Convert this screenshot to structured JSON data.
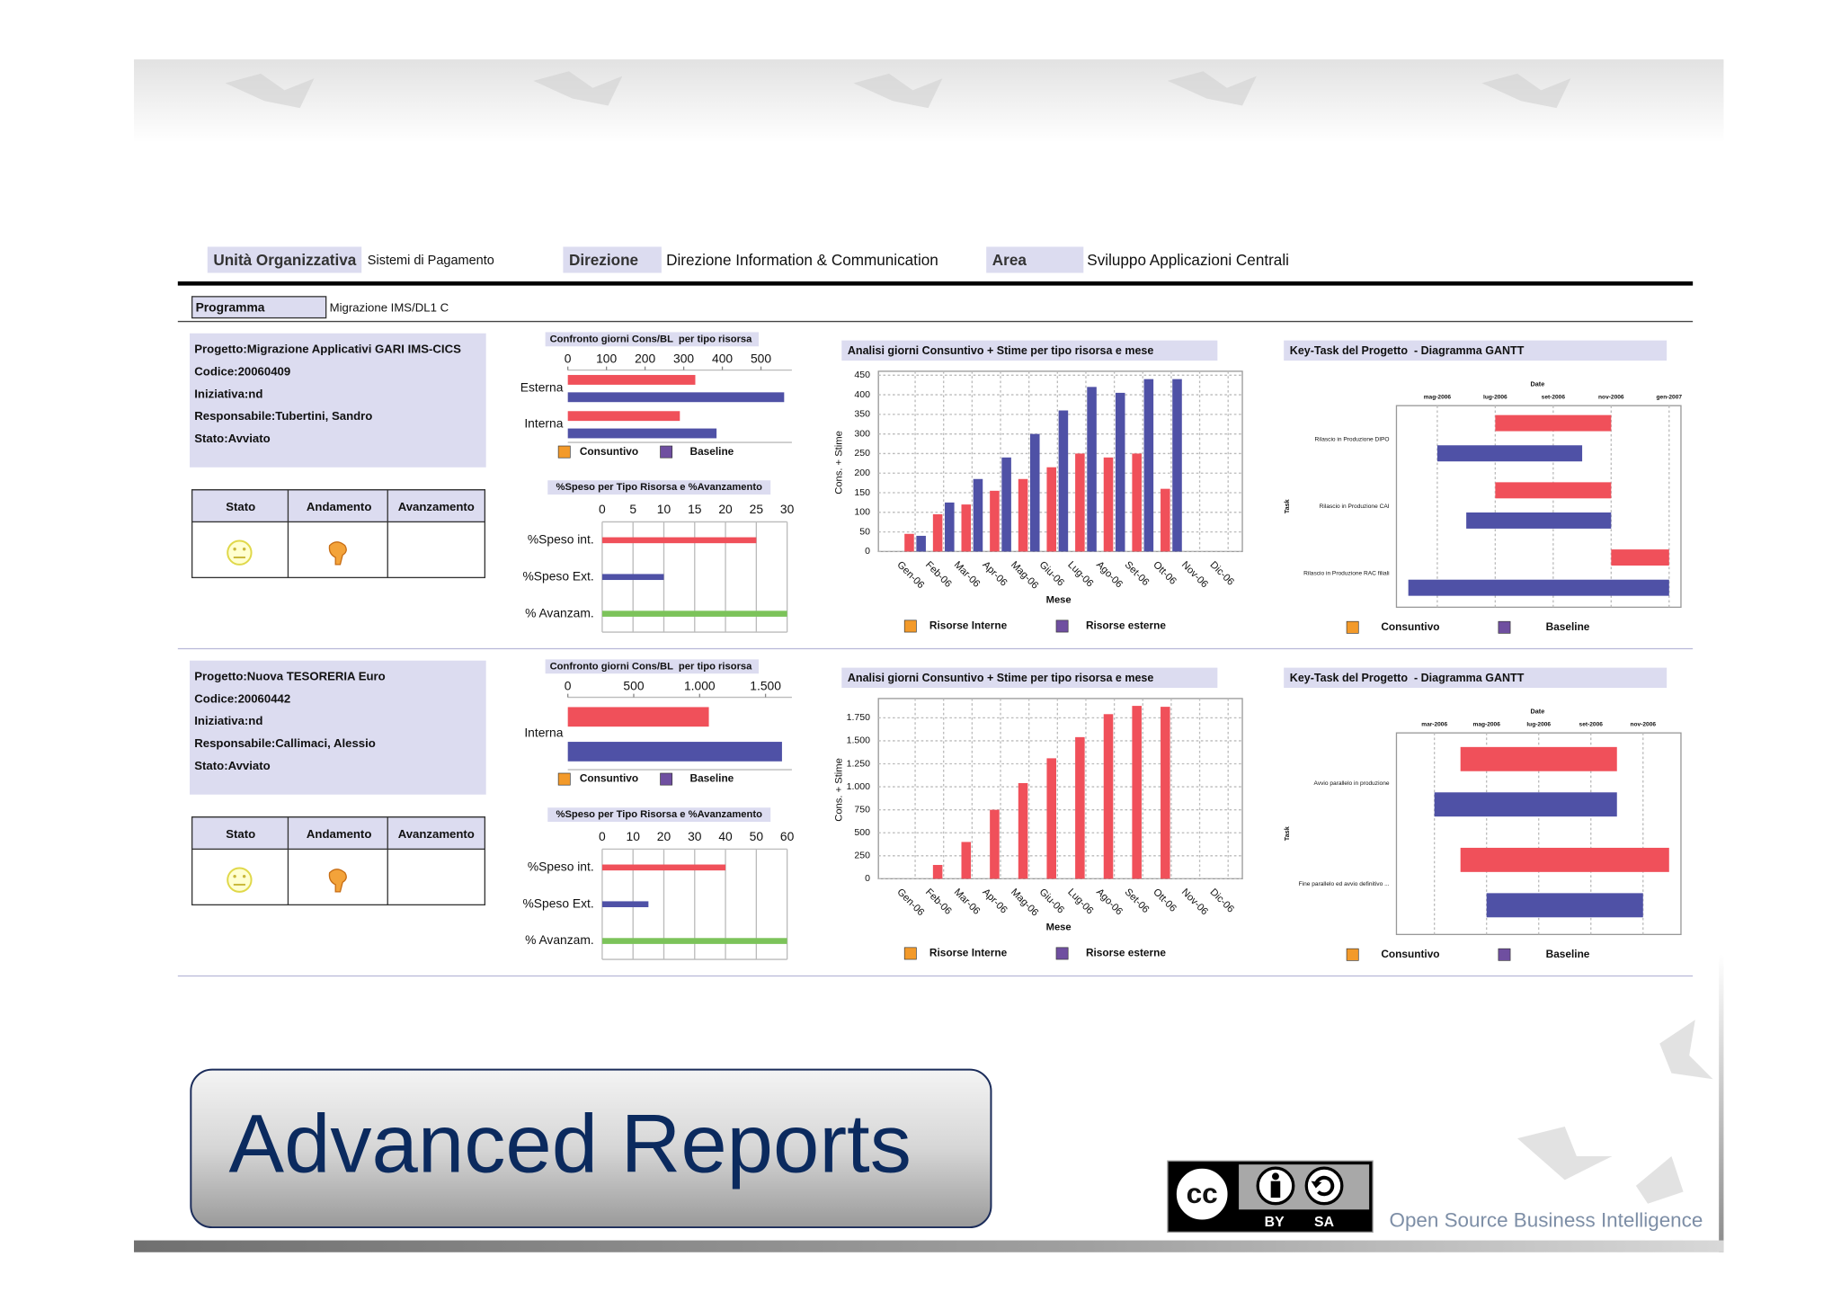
{
  "header": {
    "fields": [
      {
        "label": "Unità Organizzativa",
        "value": "Sistemi di Pagamento"
      },
      {
        "label": "Direzione",
        "value": "Direzione Information & Communication"
      },
      {
        "label": "Area",
        "value": "Sviluppo Applicazioni Centrali"
      }
    ],
    "program": {
      "label": "Programma",
      "value": "Migrazione IMS/DL1 C"
    }
  },
  "projects": [
    {
      "info": [
        "Progetto:Migrazione Applicativi GARI IMS-CICS",
        "Codice:20060409",
        "Iniziativa:nd",
        "Responsabile:Tubertini, Sandro",
        "Stato:Avviato"
      ],
      "status_headers": [
        "Stato",
        "Andamento",
        "Avanzamento"
      ]
    },
    {
      "info": [
        "Progetto:Nuova TESORERIA Euro",
        "Codice:20060442",
        "Iniziativa:nd",
        "Responsabile:Callimaci, Alessio",
        "Stato:Avviato"
      ],
      "status_headers": [
        "Stato",
        "Andamento",
        "Avanzamento"
      ]
    }
  ],
  "chart_data": [
    {
      "type": "hbar",
      "title": "Confronto giorni Cons/BL  per tipo risorsa",
      "categories": [
        "Esterna",
        "Interna"
      ],
      "series": [
        {
          "name": "Consuntivo",
          "color": "#f0505a",
          "legend_color": "#f39a2a",
          "values": [
            330,
            290
          ]
        },
        {
          "name": "Baseline",
          "color": "#4f51a6",
          "legend_color": "#6f4fa0",
          "values": [
            560,
            385
          ]
        }
      ],
      "xlim": [
        0,
        580
      ],
      "xticks": [
        0,
        100,
        200,
        300,
        400,
        500
      ],
      "grid": false
    },
    {
      "type": "hbar",
      "title": "%Speso per Tipo Risorsa e %Avanzamento",
      "categories": [
        "%Speso int.",
        "%Speso Ext.",
        "% Avanzam."
      ],
      "values": [
        25,
        10,
        30
      ],
      "colors": [
        "#f0505a",
        "#4f51a6",
        "#7cc35a"
      ],
      "xlim": [
        0,
        30
      ],
      "xticks": [
        0,
        5,
        10,
        15,
        20,
        25,
        30
      ],
      "grid": true
    },
    {
      "type": "bar",
      "title": "Analisi giorni Consuntivo + Stime per tipo risorsa e mese",
      "ylabel": "Cons. + Stime",
      "xlabel": "Mese",
      "categories": [
        "Gen-06",
        "Feb-06",
        "Mar-06",
        "Apr-06",
        "Mag-06",
        "Giu-06",
        "Lug-06",
        "Ago-06",
        "Set-06",
        "Ott-06",
        "Nov-06",
        "Dic-06"
      ],
      "series": [
        {
          "name": "Risorse Interne",
          "color": "#f0505a",
          "legend_color": "#f39a2a",
          "values": [
            45,
            95,
            120,
            155,
            185,
            215,
            250,
            240,
            250,
            160,
            null,
            null
          ]
        },
        {
          "name": "Risorse esterne",
          "color": "#4f51a6",
          "legend_color": "#6f4fa0",
          "values": [
            40,
            125,
            185,
            240,
            300,
            360,
            420,
            405,
            440,
            440,
            null,
            null
          ]
        }
      ],
      "ylim": [
        0,
        460
      ],
      "yticks": [
        0,
        50,
        100,
        150,
        200,
        250,
        300,
        350,
        400,
        450
      ],
      "grid": true
    },
    {
      "type": "gantt",
      "title": "Key-Task del Progetto  - Diagramma GANTT",
      "xlabel": "Date",
      "ylabel": "Task",
      "tasks": [
        "Rilascio in Produzione DIPO",
        "Rilascio in Produzione CAI",
        "Rilascio in Produzione RAC filiali"
      ],
      "series": [
        {
          "name": "Consuntivo",
          "color": "#f0505a",
          "legend_color": "#f39a2a",
          "start": [
            "2006-07",
            "2006-07",
            "2006-11"
          ],
          "end": [
            "2006-11",
            "2006-11",
            "2007-01"
          ]
        },
        {
          "name": "Baseline",
          "color": "#4f51a6",
          "legend_color": "#6f4fa0",
          "start": [
            "2006-05",
            "2006-06",
            "2006-04"
          ],
          "end": [
            "2006-10",
            "2006-11",
            "2007-01"
          ]
        }
      ],
      "xlim": [
        "2006-04",
        "2007-01"
      ],
      "xticks": [
        {
          "value": "2006-05",
          "label": "mag-2006"
        },
        {
          "value": "2006-07",
          "label": "lug-2006"
        },
        {
          "value": "2006-09",
          "label": "set-2006"
        },
        {
          "value": "2006-11",
          "label": "nov-2006"
        },
        {
          "value": "2007-01",
          "label": "gen-2007"
        }
      ],
      "grid": true
    },
    {
      "type": "hbar",
      "title": "Confronto giorni Cons/BL  per tipo risorsa",
      "categories": [
        "Interna"
      ],
      "series": [
        {
          "name": "Consuntivo",
          "color": "#f0505a",
          "legend_color": "#f39a2a",
          "values": [
            1070
          ]
        },
        {
          "name": "Baseline",
          "color": "#4f51a6",
          "legend_color": "#6f4fa0",
          "values": [
            1625
          ]
        }
      ],
      "xlim": [
        0,
        1700
      ],
      "xticks": [
        0,
        500,
        {
          "value": 1000,
          "label": "1.000"
        },
        {
          "value": 1500,
          "label": "1.500"
        }
      ],
      "grid": false
    },
    {
      "type": "hbar",
      "title": "%Speso per Tipo Risorsa e %Avanzamento",
      "categories": [
        "%Speso int.",
        "%Speso Ext.",
        "% Avanzam."
      ],
      "values": [
        40,
        15,
        60
      ],
      "colors": [
        "#f0505a",
        "#4f51a6",
        "#7cc35a"
      ],
      "xlim": [
        0,
        60
      ],
      "xticks": [
        0,
        10,
        20,
        30,
        40,
        50,
        60
      ],
      "grid": true
    },
    {
      "type": "bar",
      "title": "Analisi giorni Consuntivo + Stime per tipo risorsa e mese",
      "ylabel": "Cons. + Stime",
      "xlabel": "Mese",
      "categories": [
        "Gen-06",
        "Feb-06",
        "Mar-06",
        "Apr-06",
        "Mag-06",
        "Giu-06",
        "Lug-06",
        "Ago-06",
        "Set-06",
        "Ott-06",
        "Nov-06",
        "Dic-06"
      ],
      "series": [
        {
          "name": "Risorse Interne",
          "color": "#f0505a",
          "legend_color": "#f39a2a",
          "values": [
            null,
            150,
            400,
            750,
            1040,
            1310,
            1540,
            1790,
            1880,
            1870,
            null,
            null
          ]
        },
        {
          "name": "Risorse esterne",
          "color": "#4f51a6",
          "legend_color": "#6f4fa0",
          "values": [
            null,
            null,
            null,
            null,
            null,
            null,
            null,
            null,
            null,
            null,
            null,
            null
          ]
        }
      ],
      "ylim": [
        0,
        1960
      ],
      "yticks": [
        0,
        250,
        500,
        750,
        {
          "value": 1000,
          "label": "1.000"
        },
        {
          "value": 1250,
          "label": "1.250"
        },
        {
          "value": 1500,
          "label": "1.500"
        },
        {
          "value": 1750,
          "label": "1.750"
        }
      ],
      "grid": true
    },
    {
      "type": "gantt",
      "title": "Key-Task del Progetto  - Diagramma GANTT",
      "xlabel": "Date",
      "ylabel": "Task",
      "tasks": [
        "Avvio parallelo in produzione",
        "Fine parallelo ed avvio definitivo ..."
      ],
      "series": [
        {
          "name": "Consuntivo",
          "color": "#f0505a",
          "legend_color": "#f39a2a",
          "start": [
            "2006-04",
            "2006-04"
          ],
          "end": [
            "2006-10",
            "2006-12"
          ]
        },
        {
          "name": "Baseline",
          "color": "#4f51a6",
          "legend_color": "#6f4fa0",
          "start": [
            "2006-03",
            "2006-05"
          ],
          "end": [
            "2006-10",
            "2006-11"
          ]
        }
      ],
      "xlim": [
        "2006-02",
        "2006-12"
      ],
      "xticks": [
        {
          "value": "2006-03",
          "label": "mar-2006"
        },
        {
          "value": "2006-05",
          "label": "mag-2006"
        },
        {
          "value": "2006-07",
          "label": "lug-2006"
        },
        {
          "value": "2006-09",
          "label": "set-2006"
        },
        {
          "value": "2006-11",
          "label": "nov-2006"
        }
      ],
      "grid": true
    }
  ],
  "footer": {
    "title": "Advanced Reports",
    "license": {
      "cc": "cc",
      "by": "BY",
      "sa": "SA"
    },
    "brand": "Open Source Business Intelligence"
  }
}
